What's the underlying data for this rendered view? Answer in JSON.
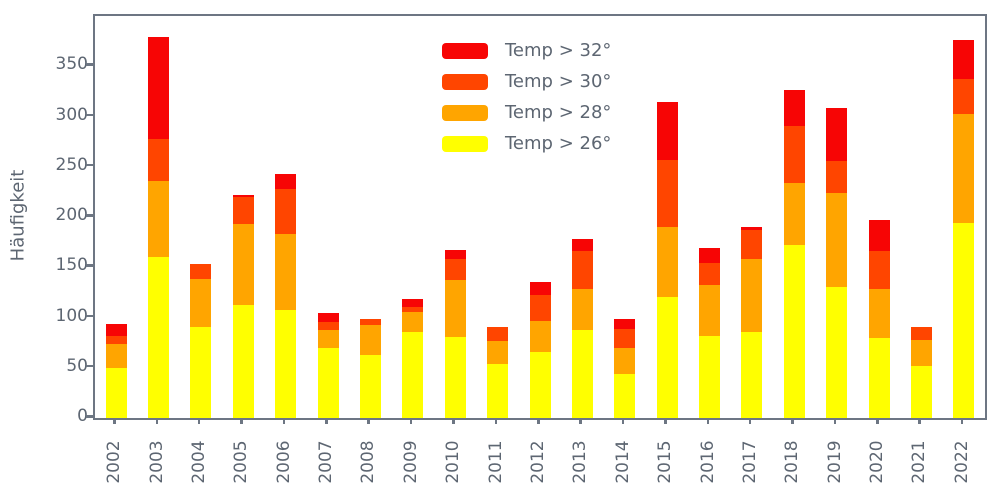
{
  "ylabel": "Häufigkeit",
  "chart_data": {
    "type": "bar",
    "stacked": true,
    "title": "",
    "xlabel": "",
    "ylabel": "Häufigkeit",
    "ylim": [
      0,
      400
    ],
    "yticks": [
      0,
      50,
      100,
      150,
      200,
      250,
      300,
      350
    ],
    "grid": false,
    "legend_position": "upper center-right, no frame",
    "legend_order_top_to_bottom": [
      "Temp > 32°",
      "Temp > 30°",
      "Temp > 28°",
      "Temp > 26°"
    ],
    "categories": [
      2002,
      2003,
      2004,
      2005,
      2006,
      2007,
      2008,
      2009,
      2010,
      2011,
      2012,
      2013,
      2014,
      2015,
      2016,
      2017,
      2018,
      2019,
      2020,
      2021,
      2022
    ],
    "series": [
      {
        "name": "Temp > 26°",
        "color": "#ffff00",
        "values": [
          50,
          160,
          91,
          112,
          107,
          70,
          63,
          86,
          81,
          54,
          66,
          88,
          44,
          120,
          82,
          86,
          172,
          130,
          80,
          52,
          194
        ]
      },
      {
        "name": "Temp > 28°",
        "color": "#ffa500",
        "values": [
          24,
          76,
          47,
          81,
          76,
          18,
          30,
          19,
          56,
          23,
          31,
          40,
          26,
          70,
          50,
          72,
          62,
          94,
          48,
          26,
          109
        ]
      },
      {
        "name": "Temp > 30°",
        "color": "#ff4500",
        "values": [
          8,
          42,
          15,
          27,
          45,
          8,
          6,
          5,
          21,
          14,
          25,
          38,
          19,
          67,
          22,
          29,
          57,
          32,
          38,
          13,
          34
        ]
      },
      {
        "name": "Temp > 32°",
        "color": "#f70505",
        "values": [
          12,
          101,
          0,
          2,
          15,
          9,
          0,
          8,
          9,
          0,
          13,
          12,
          10,
          57,
          15,
          3,
          35,
          52,
          31,
          0,
          39
        ]
      }
    ],
    "totals": [
      94,
      379,
      153,
      222,
      243,
      105,
      99,
      118,
      167,
      91,
      135,
      178,
      99,
      314,
      169,
      190,
      326,
      308,
      197,
      91,
      376
    ],
    "axis_color": "#6d7683",
    "text_color": "#5d6672",
    "background_color": "#ffffff"
  }
}
